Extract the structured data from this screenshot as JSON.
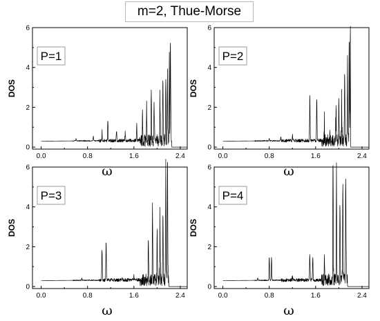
{
  "figure": {
    "title": "m=2, Thue-Morse"
  },
  "chart_data": [
    {
      "type": "line",
      "panel_label": "P=1",
      "xlabel": "ω",
      "ylabel": "DOS",
      "xlim": [
        -0.15,
        2.52
      ],
      "ylim": [
        -0.1,
        6.0
      ],
      "xticks": [
        "0.0",
        "0.8",
        "1.6",
        "2.4"
      ],
      "yticks": [
        "0",
        "2",
        "4",
        "6"
      ],
      "baseline": 0.3,
      "cutoff": 2.25,
      "peaks": [
        [
          0.6,
          0.4
        ],
        [
          0.9,
          0.5
        ],
        [
          1.05,
          0.7
        ],
        [
          1.15,
          1.2
        ],
        [
          1.3,
          0.9
        ],
        [
          1.45,
          0.8
        ],
        [
          1.65,
          1.0
        ],
        [
          1.75,
          1.8
        ],
        [
          1.82,
          2.0
        ],
        [
          1.9,
          2.1
        ],
        [
          1.95,
          1.8
        ],
        [
          2.05,
          2.6
        ],
        [
          2.1,
          2.8
        ],
        [
          2.15,
          3.5
        ],
        [
          2.18,
          3.7
        ],
        [
          2.21,
          4.6
        ],
        [
          2.23,
          6.0
        ]
      ]
    },
    {
      "type": "line",
      "panel_label": "P=2",
      "xlabel": "ω",
      "ylabel": "DOS",
      "xlim": [
        -0.15,
        2.52
      ],
      "ylim": [
        -0.1,
        6.0
      ],
      "xticks": [
        "0.0",
        "0.8",
        "1.6",
        "2.4"
      ],
      "yticks": [
        "0",
        "2",
        "4",
        "6"
      ],
      "baseline": 0.3,
      "cutoff": 2.2,
      "peaks": [
        [
          0.8,
          0.4
        ],
        [
          1.0,
          0.5
        ],
        [
          1.2,
          0.5
        ],
        [
          1.5,
          2.4
        ],
        [
          1.62,
          2.4
        ],
        [
          1.75,
          1.0
        ],
        [
          1.85,
          1.2
        ],
        [
          1.95,
          1.6
        ],
        [
          2.0,
          2.0
        ],
        [
          2.05,
          2.5
        ],
        [
          2.1,
          3.6
        ],
        [
          2.15,
          4.0
        ],
        [
          2.18,
          5.0
        ],
        [
          2.2,
          6.0
        ]
      ]
    },
    {
      "type": "line",
      "panel_label": "P=3",
      "xlabel": "ω",
      "ylabel": "DOS",
      "xlim": [
        -0.15,
        2.52
      ],
      "ylim": [
        -0.1,
        6.0
      ],
      "xticks": [
        "0.0",
        "0.8",
        "1.6",
        "2.4"
      ],
      "yticks": [
        "0",
        "2",
        "4",
        "6"
      ],
      "baseline": 0.3,
      "cutoff": 2.2,
      "peaks": [
        [
          0.7,
          0.4
        ],
        [
          1.05,
          2.0
        ],
        [
          1.12,
          2.3
        ],
        [
          1.4,
          0.5
        ],
        [
          1.6,
          0.6
        ],
        [
          1.85,
          3.0
        ],
        [
          1.92,
          4.4
        ],
        [
          2.0,
          2.5
        ],
        [
          2.05,
          3.6
        ],
        [
          2.1,
          3.5
        ],
        [
          2.15,
          5.8
        ],
        [
          2.18,
          6.0
        ]
      ]
    },
    {
      "type": "line",
      "panel_label": "P=4",
      "xlabel": "ω",
      "ylabel": "DOS",
      "xlim": [
        -0.15,
        2.52
      ],
      "ylim": [
        -0.1,
        6.0
      ],
      "xticks": [
        "0.0",
        "0.8",
        "1.6",
        "2.4"
      ],
      "yticks": [
        "0",
        "2",
        "4",
        "6"
      ],
      "baseline": 0.3,
      "cutoff": 2.15,
      "peaks": [
        [
          0.6,
          0.4
        ],
        [
          0.8,
          1.45
        ],
        [
          0.84,
          1.45
        ],
        [
          1.2,
          0.5
        ],
        [
          1.5,
          1.7
        ],
        [
          1.55,
          1.55
        ],
        [
          1.75,
          1.0
        ],
        [
          1.9,
          5.9
        ],
        [
          1.96,
          5.6
        ],
        [
          2.02,
          4.3
        ],
        [
          2.07,
          6.0
        ],
        [
          2.12,
          5.0
        ]
      ]
    }
  ]
}
